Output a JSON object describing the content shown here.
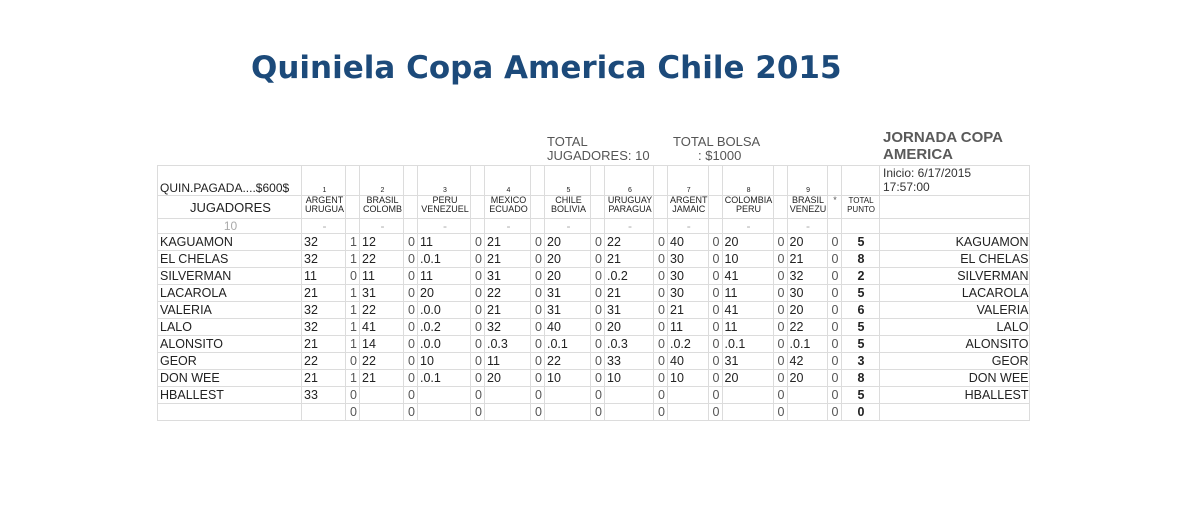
{
  "title": "Quiniela Copa America Chile 2015",
  "stats": {
    "total_jugadores_l1": "TOTAL",
    "total_jugadores_l2": "JUGADORES: 10",
    "total_bolsa_l1": "TOTAL BOLSA",
    "total_bolsa_l2": ": $1000"
  },
  "jornada": {
    "title_l1": "JORNADA COPA",
    "title_l2": "AMERICA",
    "inicio_l1": "Inicio: 6/17/2015",
    "inicio_l2": "17:57:00"
  },
  "table": {
    "quin_pagada": "QUIN.PAGADA....$600$",
    "jugadores_label": "JUGADORES",
    "header3_first": "10",
    "total_label_l1": "TOTAL",
    "total_label_l2": "PUNTO",
    "star": "*",
    "matches": [
      {
        "num": "1",
        "l1": "ARGENT",
        "l2": "URUGUA"
      },
      {
        "num": "2",
        "l1": "BRASIL",
        "l2": "COLOMB"
      },
      {
        "num": "3",
        "l1": "PERU",
        "l2": "VENEZUEL"
      },
      {
        "num": "4",
        "l1": "MEXICO",
        "l2": "ECUADO"
      },
      {
        "num": "5",
        "l1": "CHILE",
        "l2": "BOLIVIA"
      },
      {
        "num": "6",
        "l1": "URUGUAY",
        "l2": "PARAGUA"
      },
      {
        "num": "7",
        "l1": "ARGENT",
        "l2": "JAMAIC"
      },
      {
        "num": "8",
        "l1": "COLOMBIA",
        "l2": "PERU"
      },
      {
        "num": "9",
        "l1": "BRASIL",
        "l2": "VENEZU"
      }
    ],
    "dash": "-",
    "rows": [
      {
        "name": "KAGUAMON",
        "picks": [
          "32",
          "12",
          "11",
          "21",
          "20",
          "22",
          "40",
          "20",
          "20"
        ],
        "pts": [
          "1",
          "0",
          "0",
          "0",
          "0",
          "0",
          "0",
          "0",
          "0"
        ],
        "total": "5"
      },
      {
        "name": "EL CHELAS",
        "picks": [
          "32",
          "22",
          ".0.1",
          "21",
          "20",
          "21",
          "30",
          "10",
          "21"
        ],
        "pts": [
          "1",
          "0",
          "0",
          "0",
          "0",
          "0",
          "0",
          "0",
          "0"
        ],
        "total": "8"
      },
      {
        "name": "SILVERMAN",
        "picks": [
          "11",
          "11",
          "11",
          "31",
          "20",
          ".0.2",
          "30",
          "41",
          "32"
        ],
        "pts": [
          "0",
          "0",
          "0",
          "0",
          "0",
          "0",
          "0",
          "0",
          "0"
        ],
        "total": "2"
      },
      {
        "name": "LACAROLA",
        "picks": [
          "21",
          "31",
          "20",
          "22",
          "31",
          "21",
          "30",
          "11",
          "30"
        ],
        "pts": [
          "1",
          "0",
          "0",
          "0",
          "0",
          "0",
          "0",
          "0",
          "0"
        ],
        "total": "5"
      },
      {
        "name": "VALERIA",
        "picks": [
          "32",
          "22",
          ".0.0",
          "21",
          "31",
          "31",
          "21",
          "41",
          "20"
        ],
        "pts": [
          "1",
          "0",
          "0",
          "0",
          "0",
          "0",
          "0",
          "0",
          "0"
        ],
        "total": "6"
      },
      {
        "name": "LALO",
        "picks": [
          "32",
          "41",
          ".0.2",
          "32",
          "40",
          "20",
          "11",
          "11",
          "22"
        ],
        "pts": [
          "1",
          "0",
          "0",
          "0",
          "0",
          "0",
          "0",
          "0",
          "0"
        ],
        "total": "5"
      },
      {
        "name": "ALONSITO",
        "picks": [
          "21",
          "14",
          ".0.0",
          ".0.3",
          ".0.1",
          ".0.3",
          ".0.2",
          ".0.1",
          ".0.1"
        ],
        "pts": [
          "1",
          "0",
          "0",
          "0",
          "0",
          "0",
          "0",
          "0",
          "0"
        ],
        "total": "5"
      },
      {
        "name": "GEOR",
        "picks": [
          "22",
          "22",
          "10",
          "11",
          "22",
          "33",
          "40",
          "31",
          "42"
        ],
        "pts": [
          "0",
          "0",
          "0",
          "0",
          "0",
          "0",
          "0",
          "0",
          "0"
        ],
        "total": "3"
      },
      {
        "name": "DON WEE",
        "picks": [
          "21",
          "21",
          ".0.1",
          "20",
          "10",
          "10",
          "10",
          "20",
          "20"
        ],
        "pts": [
          "1",
          "0",
          "0",
          "0",
          "0",
          "0",
          "0",
          "0",
          "0"
        ],
        "total": "8"
      },
      {
        "name": "HBALLEST",
        "picks": [
          "33",
          "",
          "",
          "",
          "",
          "",
          "",
          "",
          ""
        ],
        "pts": [
          "0",
          "0",
          "0",
          "0",
          "0",
          "0",
          "0",
          "0",
          "0"
        ],
        "total": "5"
      },
      {
        "name": "",
        "picks": [
          "",
          "",
          "",
          "",
          "",
          "",
          "",
          "",
          ""
        ],
        "pts": [
          "0",
          "0",
          "0",
          "0",
          "0",
          "0",
          "0",
          "0",
          "0"
        ],
        "total": "0"
      }
    ]
  }
}
